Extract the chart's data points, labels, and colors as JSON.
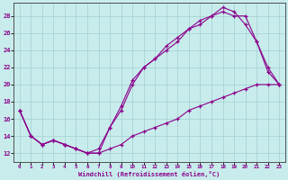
{
  "bg_color": "#c8ecec",
  "grid_color": "#a8d4d4",
  "line_color": "#8b008b",
  "xlabel": "Windchill (Refroidissement éolien,°C)",
  "xlim": [
    -0.5,
    23.5
  ],
  "ylim": [
    11.0,
    29.5
  ],
  "xticks": [
    0,
    1,
    2,
    3,
    4,
    5,
    6,
    7,
    8,
    9,
    10,
    11,
    12,
    13,
    14,
    15,
    16,
    17,
    18,
    19,
    20,
    21,
    22,
    23
  ],
  "yticks": [
    12,
    14,
    16,
    18,
    20,
    22,
    24,
    26,
    28
  ],
  "line1_x": [
    0,
    1,
    2,
    3,
    4,
    5,
    6,
    7,
    8,
    9,
    10,
    11,
    12,
    13,
    14,
    15,
    16,
    17,
    18,
    19,
    20,
    21,
    22,
    23
  ],
  "line1_y": [
    17,
    14,
    13,
    13.5,
    13,
    12.5,
    12,
    12,
    15,
    17.5,
    20.5,
    22,
    23,
    24.5,
    25.5,
    26.5,
    27.5,
    28,
    28.5,
    28,
    28,
    25,
    21.5,
    20
  ],
  "line2_x": [
    0,
    1,
    2,
    3,
    4,
    5,
    6,
    7,
    8,
    9,
    10,
    11,
    12,
    13,
    14,
    15,
    16,
    17,
    18,
    19,
    20,
    21,
    22,
    23
  ],
  "line2_y": [
    17,
    14,
    13,
    13.5,
    13,
    12.5,
    12,
    12.5,
    15,
    17,
    20,
    22,
    23,
    24,
    25,
    26.5,
    27,
    28,
    29,
    28.5,
    27,
    25,
    22,
    20
  ],
  "line3_x": [
    0,
    1,
    2,
    3,
    4,
    5,
    6,
    7,
    8,
    9,
    10,
    11,
    12,
    13,
    14,
    15,
    16,
    17,
    18,
    19,
    20,
    21,
    22,
    23
  ],
  "line3_y": [
    17,
    14,
    13,
    13.5,
    13,
    12.5,
    12,
    12,
    12.5,
    13,
    14,
    14.5,
    15,
    15.5,
    16,
    17,
    17.5,
    18,
    18.5,
    19,
    19.5,
    20,
    20,
    20
  ]
}
